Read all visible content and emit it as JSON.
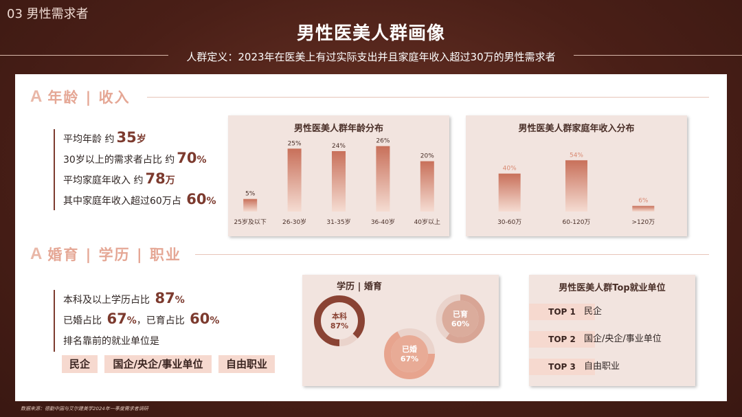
{
  "header": {
    "section_tag": "03 男性需求者",
    "title": "男性医美人群画像",
    "subtitle": "人群定义：2023年在医美上有过实际支出并且家庭年收入超过30万的男性需求者"
  },
  "age_income": {
    "section_letter": "A",
    "section_title": "年龄 | 收入",
    "stats": [
      {
        "label": "平均年龄 约",
        "value": "35",
        "unit": "岁"
      },
      {
        "label": "30岁以上的需求者占比 约",
        "value": "70",
        "unit": "%"
      },
      {
        "label": "平均家庭年收入 约",
        "value": "78",
        "unit": "万"
      },
      {
        "label": "其中家庭年收入超过60万占 ",
        "value": "60",
        "unit": "%"
      }
    ]
  },
  "marriage_edu": {
    "section_letter": "A",
    "section_title": "婚育 | 学历 | 职业",
    "stats": [
      {
        "label": "本科及以上学历占比 ",
        "value": "87",
        "unit": "%"
      },
      {
        "label": "已婚占比 ",
        "value": "67",
        "unit": "%",
        "label2": "，已育占比 ",
        "value2": "60",
        "unit2": "%"
      },
      {
        "label": "排名靠前的就业单位是",
        "value": "",
        "unit": ""
      }
    ],
    "pills": [
      "民企",
      "国企/央企/事业单位",
      "自由职业"
    ]
  },
  "chart_data": [
    {
      "type": "bar",
      "title": "男性医美人群年龄分布",
      "categories": [
        "25岁及以下",
        "26-30岁",
        "31-35岁",
        "36-40岁",
        "40岁以上"
      ],
      "values": [
        5,
        25,
        24,
        26,
        20
      ],
      "labels": [
        "5%",
        "25%",
        "24%",
        "26%",
        "20%"
      ],
      "ylim": [
        0,
        30
      ]
    },
    {
      "type": "bar",
      "title": "男性医美人群家庭年收入分布",
      "categories": [
        "30-60万",
        "60-120万",
        ">120万"
      ],
      "values": [
        40,
        54,
        6
      ],
      "labels": [
        "40%",
        "54%",
        "6%"
      ],
      "ylim": [
        0,
        60
      ]
    },
    {
      "type": "pie",
      "title": "学历 | 婚育",
      "series": [
        {
          "label": "本科",
          "value": 87,
          "value_label": "87%"
        },
        {
          "label": "已婚",
          "value": 67,
          "value_label": "67%"
        },
        {
          "label": "已育",
          "value": 60,
          "value_label": "60%"
        }
      ]
    }
  ],
  "top_units": {
    "title": "男性医美人群Top就业单位",
    "items": [
      {
        "rank": "TOP 1",
        "label": "民企"
      },
      {
        "rank": "TOP 2",
        "label": "国企/央企/事业单位"
      },
      {
        "rank": "TOP 3",
        "label": "自由职业"
      }
    ]
  },
  "footer": {
    "source": "数据来源：德勤中国与艾尔建美学2024年一季度需求者调研"
  },
  "colors": {
    "accent": "#7c3a2e",
    "bar_top": "#c8705a",
    "bar_bottom": "#f5dcd2",
    "panel_bg": "#f2e4df"
  }
}
